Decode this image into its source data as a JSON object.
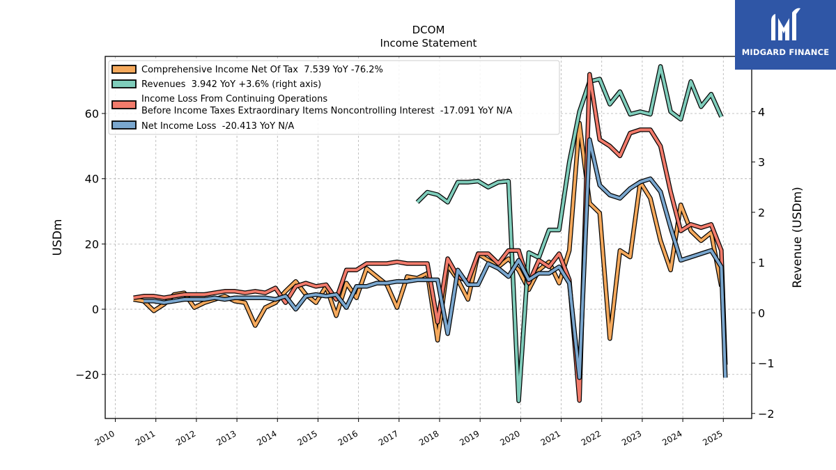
{
  "brand": {
    "name": "MIDGARD FINANCE",
    "bg_color": "#2f56a6",
    "icon": "midgard-logo-icon"
  },
  "chart_data": {
    "type": "line",
    "title": "DCOM",
    "subtitle": "Income Statement",
    "ylabel": "USDm",
    "ylabel_right": "Revenue (USDm)",
    "xlim": [
      2009.75,
      2025.7
    ],
    "ylim": [
      -33.5,
      77.5
    ],
    "ylim_right": [
      -2.1,
      5.1
    ],
    "x_ticks": [
      "2010",
      "2011",
      "2012",
      "2013",
      "2014",
      "2015",
      "2016",
      "2017",
      "2018",
      "2019",
      "2020",
      "2021",
      "2022",
      "2023",
      "2024",
      "2025"
    ],
    "y_ticks": [
      "−20",
      "0",
      "20",
      "40",
      "60"
    ],
    "y_ticks_right": [
      "−2",
      "−1",
      "0",
      "1",
      "2",
      "3",
      "4"
    ],
    "grid": true,
    "legend_position": "upper-left",
    "series": [
      {
        "name": "Comprehensive Income Net Of Tax  7.539 YoY -76.2%",
        "axis": "left",
        "color": "#f5a95c",
        "x": [
          2010.45,
          2010.7,
          2010.95,
          2011.2,
          2011.45,
          2011.7,
          2011.95,
          2012.2,
          2012.45,
          2012.7,
          2012.95,
          2013.2,
          2013.45,
          2013.7,
          2013.95,
          2014.2,
          2014.45,
          2014.7,
          2014.95,
          2015.2,
          2015.45,
          2015.7,
          2015.95,
          2016.2,
          2016.45,
          2016.7,
          2016.95,
          2017.2,
          2017.45,
          2017.7,
          2017.95,
          2018.2,
          2018.45,
          2018.7,
          2018.95,
          2019.2,
          2019.45,
          2019.7,
          2019.95,
          2020.2,
          2020.45,
          2020.7,
          2020.95,
          2021.2,
          2021.45,
          2021.7,
          2021.95,
          2022.2,
          2022.45,
          2022.7,
          2022.95,
          2023.2,
          2023.45,
          2023.7,
          2023.95,
          2024.2,
          2024.45,
          2024.7,
          2024.95
        ],
        "y": [
          3,
          2.5,
          -0.5,
          1.5,
          4.5,
          5,
          0.5,
          2,
          3,
          4,
          2.5,
          2,
          -5,
          0.5,
          2,
          5.5,
          8.5,
          4.5,
          2,
          7,
          -2,
          8,
          3.5,
          12.5,
          10,
          7.5,
          0.5,
          10,
          9.5,
          11,
          -9.5,
          13.5,
          9,
          3,
          17,
          15,
          13,
          15.5,
          12,
          6,
          12,
          14.5,
          8,
          18,
          57,
          32.5,
          29.5,
          -9,
          18,
          16,
          39,
          34,
          21,
          12,
          32,
          24,
          21,
          23.5,
          7
        ]
      },
      {
        "name": "Revenues  3.942 YoY +3.6% (right axis)",
        "axis": "right",
        "color": "#7fcdbb",
        "x": [
          2017.45,
          2017.7,
          2017.95,
          2018.2,
          2018.45,
          2018.7,
          2018.95,
          2019.2,
          2019.45,
          2019.7,
          2019.95,
          2020.2,
          2020.45,
          2020.7,
          2020.95,
          2021.2,
          2021.45,
          2021.7,
          2021.95,
          2022.2,
          2022.45,
          2022.7,
          2022.95,
          2023.2,
          2023.45,
          2023.7,
          2023.95,
          2024.2,
          2024.45,
          2024.7,
          2024.95
        ],
        "y": [
          2.2,
          2.4,
          2.35,
          2.2,
          2.6,
          2.6,
          2.62,
          2.5,
          2.6,
          2.62,
          -1.75,
          1.2,
          1.1,
          1.65,
          1.65,
          3.0,
          4.0,
          4.6,
          4.65,
          4.15,
          4.4,
          3.95,
          4.0,
          3.95,
          4.9,
          4.0,
          3.85,
          4.6,
          4.1,
          4.35,
          3.9
        ]
      },
      {
        "name": "Income Loss From Continuing Operations\nBefore Income Taxes Extraordinary Items Noncontrolling Interest  -17.091 YoY N/A",
        "axis": "left",
        "color": "#f27b6b",
        "x": [
          2010.45,
          2010.7,
          2010.95,
          2011.2,
          2011.45,
          2011.7,
          2011.95,
          2012.2,
          2012.45,
          2012.7,
          2012.95,
          2013.2,
          2013.45,
          2013.7,
          2013.95,
          2014.2,
          2014.45,
          2014.7,
          2014.95,
          2015.2,
          2015.45,
          2015.7,
          2015.95,
          2016.2,
          2016.45,
          2016.7,
          2016.95,
          2017.2,
          2017.45,
          2017.7,
          2017.95,
          2018.2,
          2018.45,
          2018.7,
          2018.95,
          2019.2,
          2019.45,
          2019.7,
          2019.95,
          2020.2,
          2020.45,
          2020.7,
          2020.95,
          2021.2,
          2021.45,
          2021.7,
          2021.95,
          2022.2,
          2022.45,
          2022.7,
          2022.95,
          2023.2,
          2023.45,
          2023.7,
          2023.95,
          2024.2,
          2024.45,
          2024.7,
          2024.95,
          2025.05
        ],
        "y": [
          3.5,
          4,
          4,
          3.5,
          4,
          4.5,
          4.5,
          4.5,
          5,
          5.5,
          5.5,
          5,
          5.5,
          5,
          6.5,
          2,
          7,
          8,
          7,
          7.5,
          3,
          12,
          12,
          14,
          14,
          14,
          14.5,
          14,
          14,
          14,
          -4,
          15.5,
          10,
          8.5,
          17,
          17,
          14,
          18,
          18,
          8,
          15,
          13,
          17,
          9,
          -28,
          72,
          52,
          50,
          47,
          54,
          55,
          55,
          50,
          36,
          24,
          26,
          25,
          26,
          18,
          -17
        ]
      },
      {
        "name": "Net Income Loss  -20.413 YoY N/A",
        "axis": "left",
        "color": "#7aa7cf",
        "x": [
          2010.7,
          2010.95,
          2011.2,
          2011.45,
          2011.7,
          2011.95,
          2012.2,
          2012.45,
          2012.7,
          2012.95,
          2013.2,
          2013.45,
          2013.7,
          2013.95,
          2014.2,
          2014.45,
          2014.7,
          2014.95,
          2015.2,
          2015.45,
          2015.7,
          2015.95,
          2016.2,
          2016.45,
          2016.7,
          2016.95,
          2017.2,
          2017.45,
          2017.7,
          2017.95,
          2018.2,
          2018.45,
          2018.7,
          2018.95,
          2019.2,
          2019.45,
          2019.7,
          2019.95,
          2020.2,
          2020.45,
          2020.7,
          2020.95,
          2021.2,
          2021.45,
          2021.7,
          2021.95,
          2022.2,
          2022.45,
          2022.7,
          2022.95,
          2023.2,
          2023.45,
          2023.7,
          2023.95,
          2024.2,
          2024.45,
          2024.7,
          2024.95,
          2025.05
        ],
        "y": [
          2.5,
          2.5,
          2,
          2.5,
          3,
          3,
          3,
          3.5,
          3,
          3.5,
          3.5,
          3.5,
          3.5,
          3,
          4,
          0,
          4,
          4.5,
          4,
          4.5,
          0.5,
          7,
          7,
          8,
          8,
          8.5,
          8.5,
          9,
          9,
          9,
          -7.5,
          12,
          7.5,
          7.5,
          14,
          12.5,
          10,
          15,
          9,
          11,
          11,
          13,
          8,
          -21,
          52,
          38,
          35,
          34,
          37,
          39,
          40,
          36,
          25,
          15,
          16,
          17,
          18,
          13,
          -21
        ]
      }
    ]
  }
}
